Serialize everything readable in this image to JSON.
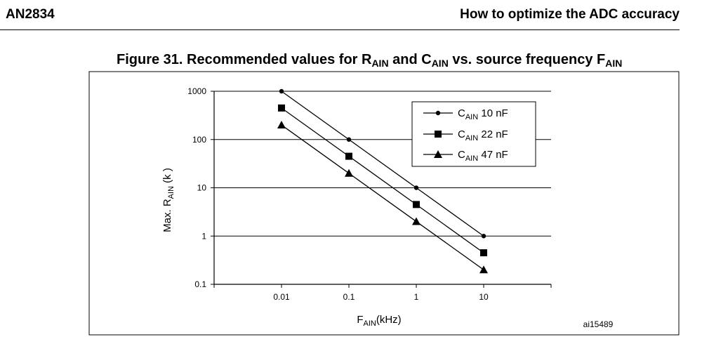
{
  "header": {
    "left": "AN2834",
    "right": "How to optimize the ADC accuracy"
  },
  "figure": {
    "title_prefix": "Figure 31. Recommended values for R",
    "title_sub1": "AIN",
    "title_mid": " and C",
    "title_sub2": "AIN",
    "title_suffix": " vs. source frequency F",
    "title_sub3": "AIN",
    "ref": "ai15489"
  },
  "chart_data": {
    "type": "line",
    "x_scale": "log",
    "y_scale": "log",
    "x": [
      0.01,
      0.1,
      1,
      10
    ],
    "x_tick_labels": [
      "0.01",
      "0.1",
      "1",
      "10"
    ],
    "y_tick_values": [
      1000,
      100,
      10,
      1,
      0.1
    ],
    "y_tick_labels": [
      "1000",
      "100",
      "10",
      "1",
      "0.1"
    ],
    "ylim": [
      0.1,
      1000
    ],
    "xlabel_main": "F",
    "xlabel_sub": "AIN",
    "xlabel_unit": "(kHz)",
    "ylabel_main": "Max. R",
    "ylabel_sub": "AIN",
    "ylabel_unit": " (k  )",
    "grid_y": true,
    "legend_position": "top-right",
    "series": [
      {
        "name": "10 nF",
        "legend_prefix": "C",
        "legend_sub": "AIN",
        "marker": "circle",
        "values": [
          1000,
          100,
          10,
          1
        ]
      },
      {
        "name": "22 nF",
        "legend_prefix": "C",
        "legend_sub": "AIN",
        "marker": "square",
        "values": [
          450,
          45,
          4.5,
          0.45
        ]
      },
      {
        "name": "47 nF",
        "legend_prefix": "C",
        "legend_sub": "AIN",
        "marker": "triangle",
        "values": [
          200,
          20,
          2,
          0.2
        ]
      }
    ]
  }
}
